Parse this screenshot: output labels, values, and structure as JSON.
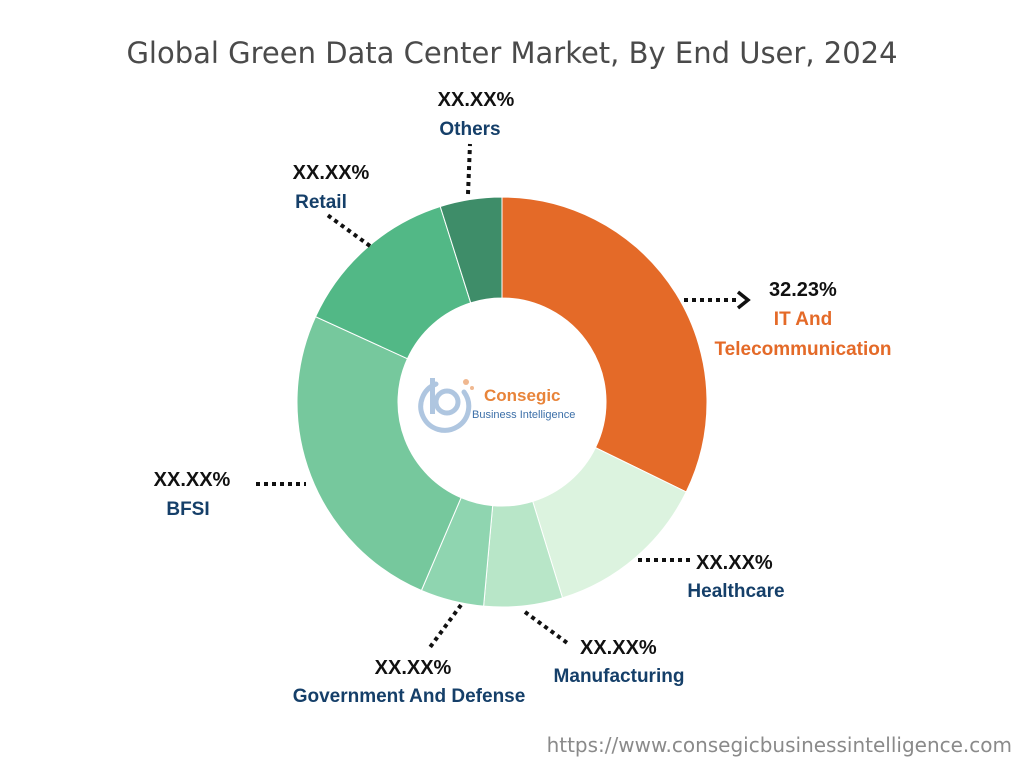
{
  "chart_data": {
    "type": "pie",
    "variant": "donut",
    "title": "Global Green Data Center Market, By End User, 2024",
    "slices": [
      {
        "name": "IT And Telecommunication",
        "value": 32.23,
        "value_label": "32.23%",
        "color": "#E46A28",
        "label_color": "#E46A28"
      },
      {
        "name": "Healthcare",
        "value": 13.0,
        "value_label": "XX.XX%",
        "color": "#DCF3DF",
        "label_color": "#153F69"
      },
      {
        "name": "Manufacturing",
        "value": 6.2,
        "value_label": "XX.XX%",
        "color": "#B8E6C8",
        "label_color": "#153F69"
      },
      {
        "name": "Government And Defense",
        "value": 5.0,
        "value_label": "XX.XX%",
        "color": "#8FD5B0",
        "label_color": "#153F69"
      },
      {
        "name": "BFSI",
        "value": 25.4,
        "value_label": "XX.XX%",
        "color": "#76C89D",
        "label_color": "#153F69"
      },
      {
        "name": "Retail",
        "value": 13.3,
        "value_label": "XX.XX%",
        "color": "#52B886",
        "label_color": "#153F69"
      },
      {
        "name": "Others",
        "value": 4.87,
        "value_label": "XX.XX%",
        "color": "#3E8D69",
        "label_color": "#153F69"
      }
    ]
  },
  "logo": {
    "name": "Consegic",
    "tagline": "Business Intelligence",
    "name_color": "#E8843A",
    "tagline_color": "#3C6FA8"
  },
  "footer": {
    "url": "https://www.consegicbusinessintelligence.com"
  }
}
